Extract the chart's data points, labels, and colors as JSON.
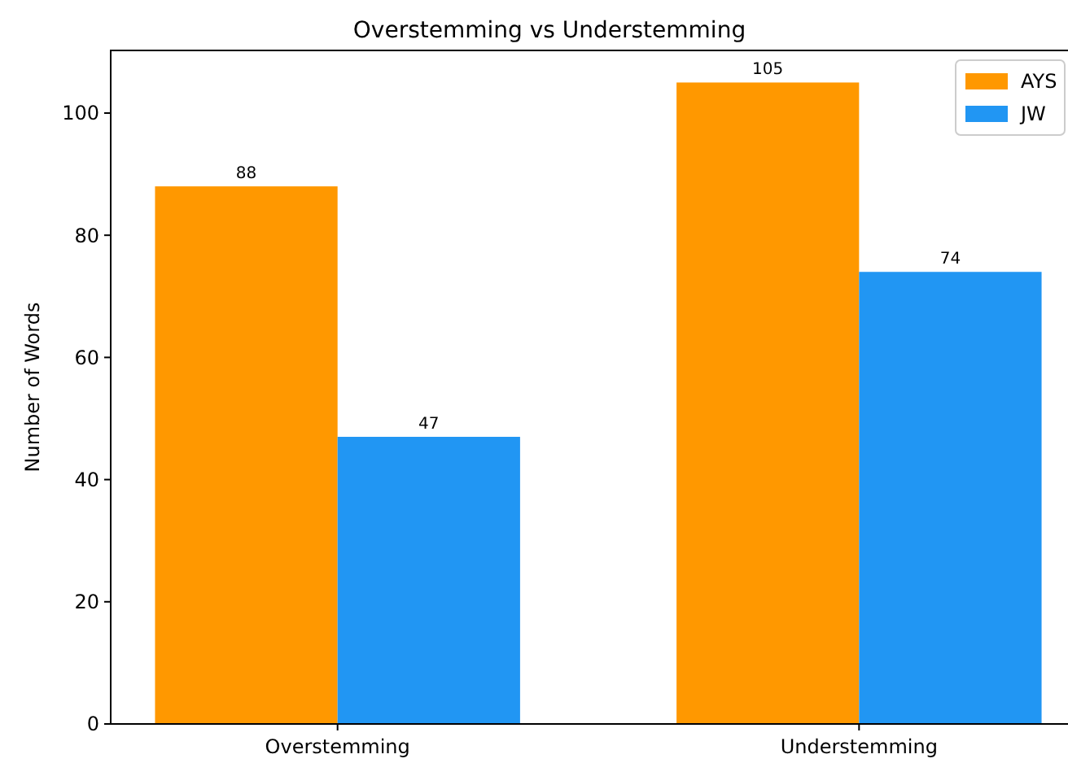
{
  "chart_data": {
    "type": "bar",
    "title": "Overstemming vs Understemming",
    "ylabel": "Number of Words",
    "categories": [
      "Overstemming",
      "Understemming"
    ],
    "series": [
      {
        "name": "AYS",
        "color": "#ff9800",
        "values": [
          88,
          105
        ]
      },
      {
        "name": "JW",
        "color": "#2196f3",
        "values": [
          47,
          74
        ]
      }
    ],
    "ylim": [
      0,
      110.25
    ],
    "yticks": [
      0,
      20,
      40,
      60,
      80,
      100
    ],
    "data_labels": true,
    "legend": "top right",
    "grid": false
  }
}
